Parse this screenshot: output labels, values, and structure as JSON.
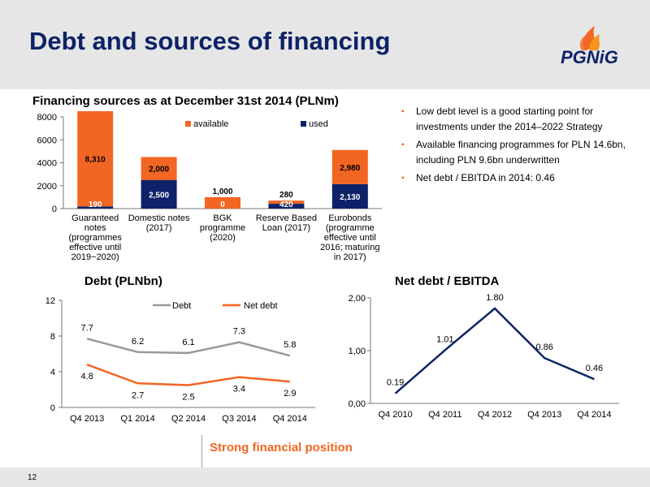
{
  "page": {
    "title": "Debt and sources of financing",
    "logo_text": "PGNiG",
    "page_number": "12",
    "footer": "Strong financial position",
    "colors": {
      "navy": "#0d2268",
      "orange": "#f26522",
      "gray": "#999999",
      "header_bg": "#e6e6e6"
    }
  },
  "bullets": [
    "Low debt level is a good starting point for investments under the 2014–2022 Strategy",
    "Available financing programmes for PLN 14.6bn, including PLN 9.6bn underwritten",
    "Net debt / EBITDA in 2014: 0.46"
  ],
  "chart_data": [
    {
      "type": "bar",
      "stacked": true,
      "title": "Financing sources as at December 31st 2014 (PLNm)",
      "categories": [
        [
          "Guaranteed",
          "notes",
          "(programmes",
          "effective until",
          "2019−2020)"
        ],
        [
          "Domestic notes",
          "(2017)"
        ],
        [
          "BGK",
          "programme",
          "(2020)"
        ],
        [
          "Reserve Based",
          "Loan (2017)"
        ],
        [
          "Eurobonds",
          "(programme",
          "effective until",
          "2016; maturing",
          "in 2017)"
        ]
      ],
      "series": [
        {
          "name": "used",
          "color": "#0d2268",
          "values": [
            190,
            2500,
            0,
            420,
            2130
          ],
          "labels": [
            "190",
            "2,500",
            "0",
            "420",
            "2,130"
          ]
        },
        {
          "name": "available",
          "color": "#f26522",
          "values": [
            8310,
            2000,
            1000,
            280,
            2980
          ],
          "labels": [
            "8,310",
            "2,000",
            "1,000",
            "280",
            "2,980"
          ]
        }
      ],
      "ylim": [
        0,
        8000
      ],
      "yticks": [
        0,
        2000,
        4000,
        6000,
        8000
      ],
      "legend": "top"
    },
    {
      "type": "line",
      "title": "Debt (PLNbn)",
      "categories": [
        "Q4 2013",
        "Q1 2014",
        "Q2 2014",
        "Q3 2014",
        "Q4 2014"
      ],
      "series": [
        {
          "name": "Debt",
          "color": "#999999",
          "values": [
            7.7,
            6.2,
            6.1,
            7.3,
            5.8
          ],
          "labels": [
            "7.7",
            "6.2",
            "6.1",
            "7.3",
            "5.8"
          ]
        },
        {
          "name": "Net debt",
          "color": "#f26522",
          "values": [
            4.8,
            2.7,
            2.5,
            3.4,
            2.9
          ],
          "labels": [
            "4.8",
            "2.7",
            "2.5",
            "3.4",
            "2.9"
          ]
        }
      ],
      "ylim": [
        0,
        12
      ],
      "yticks": [
        0,
        4,
        8,
        12
      ],
      "legend": "top"
    },
    {
      "type": "line",
      "title": "Net debt / EBITDA",
      "categories": [
        "Q4 2010",
        "Q4 2011",
        "Q4 2012",
        "Q4 2013",
        "Q4 2014"
      ],
      "series": [
        {
          "name": "",
          "color": "#0d2268",
          "values": [
            0.19,
            1.01,
            1.8,
            0.86,
            0.46
          ],
          "labels": [
            "0.19",
            "1.01",
            "1.80",
            "0.86",
            "0.46"
          ]
        }
      ],
      "ylim": [
        0,
        2
      ],
      "yticks": [
        0,
        1,
        2
      ],
      "ytick_labels": [
        "0,00",
        "1,00",
        "2,00"
      ],
      "legend": "none"
    }
  ]
}
